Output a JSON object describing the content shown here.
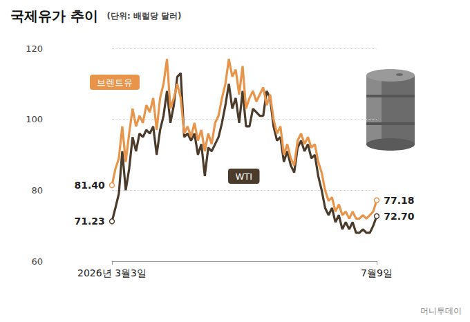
{
  "chart_data": {
    "type": "line",
    "title": "국제유가 추이",
    "subtitle": "(단위: 배럴당 달러)",
    "source": "머니투데이",
    "categories": [
      "2026년 3월3일",
      null,
      null,
      null,
      null,
      null,
      null,
      null,
      null,
      null,
      null,
      null,
      null,
      null,
      null,
      null,
      null,
      null,
      null,
      null,
      null,
      null,
      null,
      null,
      null,
      null,
      null,
      null,
      null,
      null,
      null,
      null,
      null,
      null,
      null,
      null,
      null,
      null,
      null,
      null,
      null,
      null,
      null,
      null,
      null,
      null,
      null,
      null,
      null,
      null,
      null,
      null,
      null,
      null,
      null,
      null,
      null,
      null,
      null,
      null,
      null,
      null,
      null,
      null,
      null,
      null,
      null,
      null,
      null,
      null,
      null,
      null,
      null,
      null,
      null,
      null,
      null,
      "7월9일"
    ],
    "series": [
      {
        "name": "브렌트유",
        "color": "#e8944a",
        "values": [
          81.4,
          86,
          89,
          98,
          88,
          96,
          103,
          98,
          101,
          99,
          104,
          102,
          106,
          97,
          106,
          110,
          117,
          103,
          106,
          110,
          106,
          96,
          98,
          95,
          99,
          94,
          97,
          91,
          96,
          93,
          99,
          101,
          106,
          110,
          117,
          112,
          114,
          107,
          115,
          103,
          106,
          108,
          105,
          107,
          109,
          104,
          107,
          100,
          96,
          98,
          90,
          93,
          89,
          87,
          94,
          96,
          93,
          95,
          92,
          93,
          88,
          85,
          80,
          77,
          78,
          74,
          76,
          73,
          74,
          72,
          74,
          72,
          72,
          73,
          72,
          73,
          74,
          77.18
        ],
        "value_labels": [
          "81.40",
          null,
          null,
          null,
          null,
          null,
          null,
          null,
          null,
          null,
          null,
          null,
          null,
          null,
          null,
          null,
          null,
          null,
          null,
          null,
          null,
          null,
          null,
          null,
          null,
          null,
          null,
          null,
          null,
          null,
          null,
          null,
          null,
          null,
          null,
          null,
          null,
          null,
          null,
          null,
          null,
          null,
          null,
          null,
          null,
          null,
          null,
          null,
          null,
          null,
          null,
          null,
          null,
          null,
          null,
          null,
          null,
          null,
          null,
          null,
          null,
          null,
          null,
          null,
          null,
          null,
          null,
          null,
          null,
          null,
          null,
          null,
          null,
          null,
          null,
          null,
          null,
          "77.18"
        ]
      },
      {
        "name": "WTI",
        "color": "#4a3b2a",
        "values": [
          71.23,
          75,
          79,
          91,
          80,
          86,
          95,
          91,
          96,
          95,
          97,
          96,
          98,
          90,
          97,
          101,
          108,
          99,
          104,
          112,
          113,
          95,
          96,
          94,
          96,
          90,
          93,
          84,
          92,
          91,
          93,
          95,
          99,
          104,
          110,
          103,
          106,
          99,
          108,
          98,
          98,
          103,
          102,
          101,
          101,
          108,
          106,
          98,
          94,
          95,
          88,
          91,
          87,
          85,
          92,
          94,
          91,
          93,
          89,
          90,
          84,
          80,
          75,
          73,
          75,
          71,
          73,
          69,
          71,
          69,
          71,
          68,
          68,
          69,
          68,
          68,
          70,
          72.7
        ],
        "value_labels": [
          "71.23",
          null,
          null,
          null,
          null,
          null,
          null,
          null,
          null,
          null,
          null,
          null,
          null,
          null,
          null,
          null,
          null,
          null,
          null,
          null,
          null,
          null,
          null,
          null,
          null,
          null,
          null,
          null,
          null,
          null,
          null,
          null,
          null,
          null,
          null,
          null,
          null,
          null,
          null,
          null,
          null,
          null,
          null,
          null,
          null,
          null,
          null,
          null,
          null,
          null,
          null,
          null,
          null,
          null,
          null,
          null,
          null,
          null,
          null,
          null,
          null,
          null,
          null,
          null,
          null,
          null,
          null,
          null,
          null,
          null,
          null,
          null,
          null,
          null,
          null,
          null,
          null,
          "72.70"
        ]
      }
    ],
    "ylim": [
      60,
      120
    ],
    "yticks": [
      60,
      80,
      100,
      120
    ],
    "grid": true
  }
}
